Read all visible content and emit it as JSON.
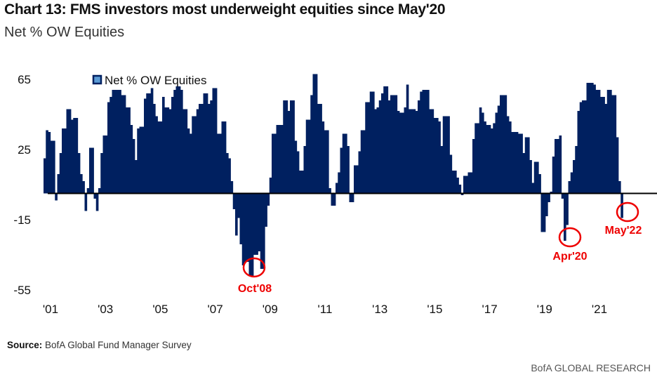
{
  "header": {
    "title": "Chart 13: FMS investors most underweight equities since May'20",
    "subtitle": "Net % OW Equities"
  },
  "footer": {
    "source_label": "Source:",
    "source_text": " BofA Global Fund Manager Survey",
    "brand": "BofA GLOBAL RESEARCH"
  },
  "chart_data": {
    "type": "bar",
    "title": "Chart 13: FMS investors most underweight equities since May'20",
    "ylabel": "",
    "xlabel": "",
    "frequency": "monthly",
    "ylim": [
      -55,
      65
    ],
    "yticks": [
      65,
      25,
      -15,
      -55
    ],
    "xticks": [
      "'01",
      "'03",
      "'05",
      "'07",
      "'09",
      "'11",
      "'13",
      "'15",
      "'17",
      "'19",
      "'21"
    ],
    "grid": false,
    "legend": {
      "position": "top-left",
      "entries": [
        "Net % OW Equities"
      ]
    },
    "colors": {
      "bars": "#002060",
      "annotation": "#e00000",
      "zero_line": "#000000"
    },
    "series": [
      {
        "name": "Net % OW Equities",
        "values": [
          20,
          36,
          35,
          30,
          30,
          -4,
          11,
          23,
          37,
          37,
          48,
          48,
          42,
          43,
          43,
          23,
          11,
          7,
          -10,
          3,
          26,
          26,
          -3,
          -10,
          3,
          23,
          33,
          33,
          52,
          55,
          59,
          59,
          59,
          59,
          56,
          56,
          49,
          49,
          39,
          31,
          19,
          37,
          38,
          38,
          54,
          57,
          57,
          60,
          51,
          44,
          41,
          41,
          55,
          49,
          49,
          48,
          55,
          59,
          61,
          61,
          59,
          48,
          48,
          37,
          34,
          44,
          44,
          48,
          51,
          51,
          57,
          57,
          51,
          53,
          60,
          60,
          34,
          34,
          41,
          41,
          23,
          20,
          7,
          -9,
          -24,
          -14,
          -29,
          -41,
          -39,
          -39,
          -47,
          -47,
          -35,
          -35,
          -33,
          -43,
          -43,
          -19,
          -7,
          9,
          34,
          34,
          39,
          39,
          39,
          53,
          53,
          47,
          53,
          53,
          30,
          24,
          13,
          13,
          27,
          42,
          42,
          56,
          68,
          68,
          51,
          51,
          41,
          36,
          36,
          3,
          -7,
          -7,
          6,
          12,
          26,
          34,
          34,
          27,
          -5,
          -5,
          16,
          16,
          24,
          36,
          36,
          52,
          52,
          58,
          58,
          48,
          49,
          53,
          57,
          61,
          61,
          53,
          56,
          56,
          56,
          47,
          46,
          46,
          49,
          62,
          48,
          48,
          48,
          47,
          53,
          58,
          59,
          59,
          59,
          48,
          48,
          43,
          43,
          41,
          27,
          44,
          44,
          44,
          22,
          13,
          13,
          9,
          5,
          -1,
          10,
          10,
          12,
          12,
          31,
          40,
          40,
          49,
          46,
          41,
          39,
          39,
          37,
          40,
          46,
          50,
          56,
          56,
          56,
          44,
          41,
          35,
          35,
          35,
          34,
          34,
          23,
          32,
          32,
          19,
          6,
          18,
          18,
          11,
          -22,
          -22,
          -13,
          -5,
          1,
          21,
          31,
          31,
          33,
          -3,
          -27,
          -18,
          7,
          12,
          19,
          27,
          47,
          52,
          53,
          53,
          63,
          63,
          63,
          62,
          59,
          59,
          55,
          55,
          51,
          59,
          59,
          56,
          56,
          32,
          7,
          -14
        ]
      }
    ],
    "annotations": [
      "Oct'08",
      "Apr'20",
      "May'22"
    ]
  }
}
